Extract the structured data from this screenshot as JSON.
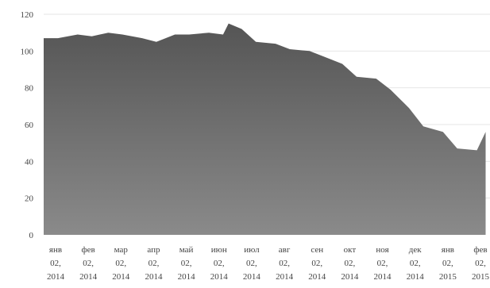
{
  "chart_data": {
    "type": "area",
    "title": "",
    "xlabel": "",
    "ylabel": "",
    "ylim": [
      0,
      120
    ],
    "yticks": [
      0,
      20,
      40,
      60,
      80,
      100,
      120
    ],
    "grid": true,
    "legend": "none",
    "colors": {
      "top": "#555555",
      "bottom": "#8a8a8a",
      "grid": "#e6e6e6",
      "text": "#444444"
    },
    "x_tick_labels": [
      [
        "янв",
        "02,",
        "2014"
      ],
      [
        "фев",
        "02,",
        "2014"
      ],
      [
        "мар",
        "02,",
        "2014"
      ],
      [
        "апр",
        "02,",
        "2014"
      ],
      [
        "май",
        "02,",
        "2014"
      ],
      [
        "июн",
        "02,",
        "2014"
      ],
      [
        "июл",
        "02,",
        "2014"
      ],
      [
        "авг",
        "02,",
        "2014"
      ],
      [
        "сен",
        "02,",
        "2014"
      ],
      [
        "окт",
        "02,",
        "2014"
      ],
      [
        "ноя",
        "02,",
        "2014"
      ],
      [
        "дек",
        "02,",
        "2014"
      ],
      [
        "янв",
        "02,",
        "2015"
      ],
      [
        "фев",
        "02,",
        "2015"
      ]
    ],
    "x": [
      "2014-01-02",
      "2014-01-15",
      "2014-02-02",
      "2014-02-15",
      "2014-03-02",
      "2014-03-15",
      "2014-04-02",
      "2014-04-15",
      "2014-05-02",
      "2014-05-15",
      "2014-06-02",
      "2014-06-15",
      "2014-06-20",
      "2014-07-02",
      "2014-07-15",
      "2014-08-02",
      "2014-08-15",
      "2014-09-02",
      "2014-09-15",
      "2014-10-02",
      "2014-10-15",
      "2014-11-02",
      "2014-11-15",
      "2014-12-02",
      "2014-12-15",
      "2015-01-02",
      "2015-01-15",
      "2015-02-02",
      "2015-02-10"
    ],
    "values": [
      107,
      107,
      109,
      108,
      110,
      109,
      107,
      105,
      109,
      109,
      110,
      109,
      115,
      112,
      105,
      104,
      101,
      100,
      97,
      93,
      86,
      85,
      79,
      69,
      59,
      56,
      47,
      46,
      56
    ]
  }
}
